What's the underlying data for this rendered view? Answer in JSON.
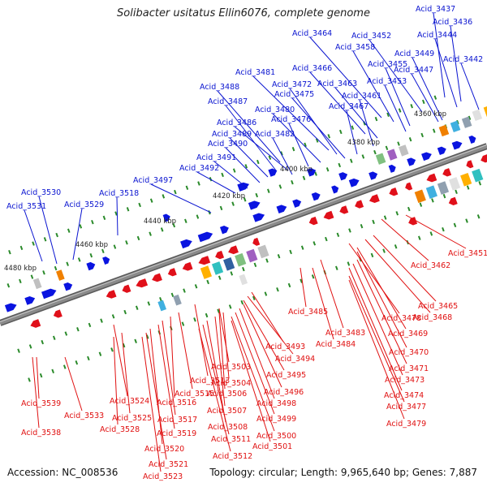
{
  "title": "Solibacter usitatus Ellin6076, complete genome",
  "footer": {
    "accession": "Accession: NC_008536",
    "topology": "Topology: circular; Length: 9,965,640 bp; Genes: 7,887"
  },
  "colors": {
    "forward_gene": "#0a14e0",
    "reverse_gene": "#e0101a",
    "forward_label": "#0a14d0",
    "reverse_label": "#e01010",
    "backbone": "#8a8a8a",
    "tick": "#2a8a2a"
  },
  "scale_labels": [
    "4360 kbp",
    "4380 kbp",
    "4400 kbp",
    "4420 kbp",
    "4440 kbp",
    "4460 kbp",
    "4480 kbp"
  ],
  "forward_labels": [
    "Acid_3437",
    "Acid_3436",
    "Acid_3444",
    "Acid_3452",
    "Acid_3464",
    "Acid_3458",
    "Acid_3449",
    "Acid_3442",
    "Acid_3466",
    "Acid_3455",
    "Acid_3447",
    "Acid_3481",
    "Acid_3472",
    "Acid_3463",
    "Acid_3453",
    "Acid_3488",
    "Acid_3475",
    "Acid_3461",
    "Acid_3487",
    "Acid_3480",
    "Acid_3467",
    "Acid_3486",
    "Acid_3476",
    "Acid_3489",
    "Acid_3482",
    "Acid_3490",
    "Acid_3491",
    "Acid_3492",
    "Acid_3497",
    "Acid_3518",
    "Acid_3530",
    "Acid_3529",
    "Acid_3531"
  ],
  "reverse_labels": [
    "Acid_3451",
    "Acid_3462",
    "Acid_3465",
    "Acid_3468",
    "Acid_3485",
    "Acid_3478",
    "Acid_3469",
    "Acid_3483",
    "Acid_3484",
    "Acid_3470",
    "Acid_3493",
    "Acid_3494",
    "Acid_3471",
    "Acid_3503",
    "Acid_3473",
    "Acid_3495",
    "Acid_3513",
    "Acid_3504",
    "Acid_3474",
    "Acid_3496",
    "Acid_3515",
    "Acid_3506",
    "Acid_3516",
    "Acid_3498",
    "Acid_3477",
    "Acid_3539",
    "Acid_3524",
    "Acid_3507",
    "Acid_3533",
    "Acid_3525",
    "Acid_3517",
    "Acid_3499",
    "Acid_3479",
    "Acid_3508",
    "Acid_3528",
    "Acid_3519",
    "Acid_3500",
    "Acid_3538",
    "Acid_3511",
    "Acid_3501",
    "Acid_3520",
    "Acid_3512",
    "Acid_3521",
    "Acid_3523"
  ]
}
